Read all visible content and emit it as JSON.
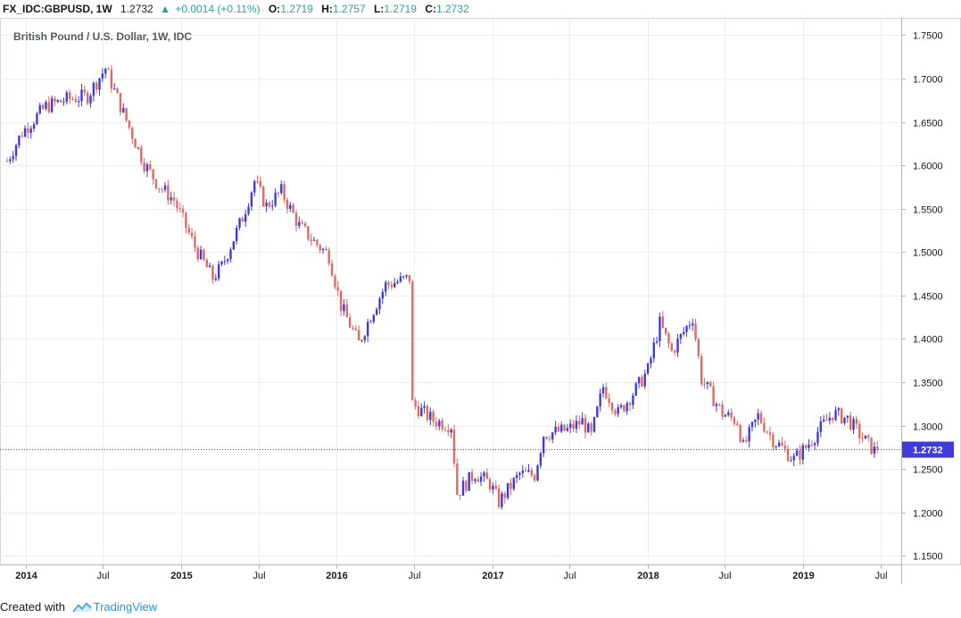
{
  "header": {
    "symbol": "FX_IDC:GBPUSD, 1W",
    "last": "1.2732",
    "change": "+0.0014 (+0.11%)",
    "open_label": "O:",
    "open": "1.2719",
    "high_label": "H:",
    "high": "1.2757",
    "low_label": "L:",
    "low": "1.2719",
    "close_label": "C:",
    "close": "1.2732"
  },
  "footer": {
    "created_with": "Created with",
    "brand": "TradingView"
  },
  "colors": {
    "up": "#3f3bd9",
    "down": "#e06a63",
    "grid": "#e8eef5",
    "axis": "#787b86",
    "price_tag": "#3f3bd9"
  },
  "chart_data": {
    "type": "candlestick",
    "title": "British Pound / U.S. Dollar, 1W, IDC",
    "ylim": [
      1.14,
      1.77
    ],
    "y_ticks": [
      "1.7500",
      "1.7000",
      "1.6500",
      "1.6000",
      "1.5500",
      "1.5000",
      "1.4500",
      "1.4000",
      "1.3500",
      "1.3000",
      "1.2500",
      "1.2000",
      "1.1500"
    ],
    "x_ticks": [
      {
        "label": "2014",
        "date": "2014-01-01",
        "bold": true
      },
      {
        "label": "Jul",
        "date": "2014-07-01",
        "bold": false
      },
      {
        "label": "2015",
        "date": "2015-01-01",
        "bold": true
      },
      {
        "label": "Jul",
        "date": "2015-07-01",
        "bold": false
      },
      {
        "label": "2016",
        "date": "2016-01-01",
        "bold": true
      },
      {
        "label": "Jul",
        "date": "2016-07-01",
        "bold": false
      },
      {
        "label": "2017",
        "date": "2017-01-01",
        "bold": true
      },
      {
        "label": "Jul",
        "date": "2017-07-01",
        "bold": false
      },
      {
        "label": "2018",
        "date": "2018-01-01",
        "bold": true
      },
      {
        "label": "Jul",
        "date": "2018-07-01",
        "bold": false
      },
      {
        "label": "2019",
        "date": "2019-01-01",
        "bold": true
      },
      {
        "label": "Jul",
        "date": "2019-07-01",
        "bold": false
      }
    ],
    "x_range": [
      "2013-11-18",
      "2019-08-19"
    ],
    "current_price": "1.2732",
    "path": [
      [
        "2013-11-18",
        1.605
      ],
      [
        "2013-12-23",
        1.638
      ],
      [
        "2014-02-17",
        1.668
      ],
      [
        "2014-04-07",
        1.676
      ],
      [
        "2014-05-26",
        1.68
      ],
      [
        "2014-07-07",
        1.712
      ],
      [
        "2014-08-18",
        1.66
      ],
      [
        "2014-10-06",
        1.602
      ],
      [
        "2014-11-10",
        1.576
      ],
      [
        "2014-12-15",
        1.56
      ],
      [
        "2015-02-02",
        1.506
      ],
      [
        "2015-03-16",
        1.47
      ],
      [
        "2015-04-06",
        1.483
      ],
      [
        "2015-05-25",
        1.54
      ],
      [
        "2015-06-22",
        1.582
      ],
      [
        "2015-07-20",
        1.553
      ],
      [
        "2015-08-24",
        1.57
      ],
      [
        "2015-10-05",
        1.53
      ],
      [
        "2015-11-09",
        1.512
      ],
      [
        "2015-12-14",
        1.496
      ],
      [
        "2016-01-11",
        1.438
      ],
      [
        "2016-02-22",
        1.395
      ],
      [
        "2016-03-21",
        1.427
      ],
      [
        "2016-04-25",
        1.462
      ],
      [
        "2016-06-20",
        1.47
      ],
      [
        "2016-06-27",
        1.325
      ],
      [
        "2016-08-15",
        1.306
      ],
      [
        "2016-09-26",
        1.3
      ],
      [
        "2016-10-10",
        1.222
      ],
      [
        "2016-11-21",
        1.245
      ],
      [
        "2016-12-26",
        1.233
      ],
      [
        "2017-01-16",
        1.212
      ],
      [
        "2017-03-06",
        1.244
      ],
      [
        "2017-04-10",
        1.243
      ],
      [
        "2017-05-01",
        1.29
      ],
      [
        "2017-06-26",
        1.295
      ],
      [
        "2017-07-31",
        1.305
      ],
      [
        "2017-08-21",
        1.288
      ],
      [
        "2017-09-18",
        1.345
      ],
      [
        "2017-10-23",
        1.314
      ],
      [
        "2017-12-04",
        1.342
      ],
      [
        "2018-01-01",
        1.364
      ],
      [
        "2018-01-29",
        1.418
      ],
      [
        "2018-02-26",
        1.385
      ],
      [
        "2018-04-16",
        1.425
      ],
      [
        "2018-05-07",
        1.354
      ],
      [
        "2018-06-25",
        1.314
      ],
      [
        "2018-07-30",
        1.305
      ],
      [
        "2018-08-13",
        1.275
      ],
      [
        "2018-09-17",
        1.311
      ],
      [
        "2018-10-22",
        1.284
      ],
      [
        "2018-12-10",
        1.261
      ],
      [
        "2019-01-07",
        1.275
      ],
      [
        "2019-02-04",
        1.293
      ],
      [
        "2019-03-11",
        1.314
      ],
      [
        "2019-04-15",
        1.308
      ],
      [
        "2019-05-13",
        1.29
      ],
      [
        "2019-06-17",
        1.271
      ],
      [
        "2019-06-24",
        1.2732
      ]
    ]
  }
}
